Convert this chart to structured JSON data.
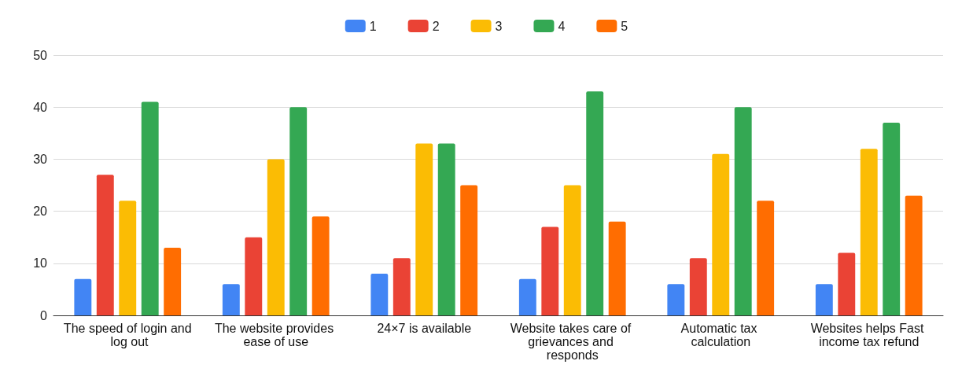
{
  "chart_data": {
    "type": "bar",
    "categories": [
      "The speed of login and log out",
      "The website provides ease of use",
      "24×7 is available",
      "Website takes care of grievances and responds",
      "Automatic tax calculation",
      "Websites helps Fast income tax refund"
    ],
    "series": [
      {
        "name": "1",
        "color": "#4285f4",
        "values": [
          7,
          6,
          8,
          7,
          6,
          6
        ]
      },
      {
        "name": "2",
        "color": "#ea4335",
        "values": [
          27,
          15,
          11,
          17,
          11,
          12
        ]
      },
      {
        "name": "3",
        "color": "#fbbc04",
        "values": [
          22,
          30,
          33,
          25,
          31,
          32
        ]
      },
      {
        "name": "4",
        "color": "#34a853",
        "values": [
          41,
          40,
          33,
          43,
          40,
          37
        ]
      },
      {
        "name": "5",
        "color": "#ff6d01",
        "values": [
          13,
          19,
          25,
          18,
          22,
          23
        ]
      }
    ],
    "ylim": [
      0,
      50
    ],
    "yticks": [
      0,
      10,
      20,
      30,
      40,
      50
    ],
    "grid": "y",
    "legend": "top"
  }
}
